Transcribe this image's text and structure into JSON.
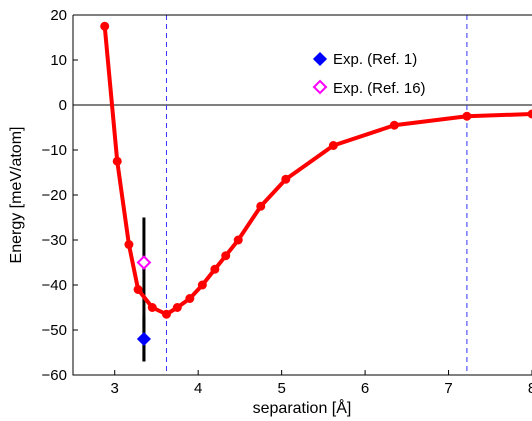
{
  "chart_data": {
    "type": "line",
    "title": "",
    "xlabel": "separation [Å]",
    "ylabel": "Energy [meV/atom]",
    "xlim": [
      2.5,
      8
    ],
    "ylim": [
      -60,
      20
    ],
    "xticks": [
      "3",
      "4",
      "5",
      "6",
      "7",
      "8"
    ],
    "yticks": [
      "20",
      "10",
      "0",
      "−10",
      "−20",
      "−30",
      "−40",
      "−50",
      "−60"
    ],
    "grid": false,
    "legend_position": "top-right",
    "series": [
      {
        "type": "line",
        "color": "#ff0000",
        "marker": "circle",
        "x": [
          2.88,
          3.03,
          3.17,
          3.28,
          3.45,
          3.62,
          3.75,
          3.9,
          4.05,
          4.2,
          4.33,
          4.48,
          4.75,
          5.05,
          5.62,
          6.35,
          7.22,
          8.0
        ],
        "y": [
          17.5,
          -12.5,
          -31,
          -41,
          -45,
          -46.5,
          -45,
          -43,
          -40,
          -36.5,
          -33.5,
          -30,
          -22.5,
          -16.5,
          -9,
          -4.5,
          -2.5,
          -2
        ]
      },
      {
        "name": "Exp. (Ref. 1)",
        "type": "scatter",
        "color": "#0000ff",
        "marker": "diamond-filled",
        "x": [
          3.35
        ],
        "y": [
          -52
        ],
        "error_y": [
          [
            -57,
            -47
          ]
        ]
      },
      {
        "name": "Exp. (Ref. 16)",
        "type": "scatter",
        "color": "#ff00ff",
        "marker": "diamond-open",
        "x": [
          3.35
        ],
        "y": [
          -35
        ],
        "error_y": [
          [
            -57,
            -25
          ]
        ]
      }
    ],
    "reference_lines": {
      "horizontal_y": [
        0
      ],
      "vertical_x": [
        3.62,
        7.22
      ]
    }
  }
}
